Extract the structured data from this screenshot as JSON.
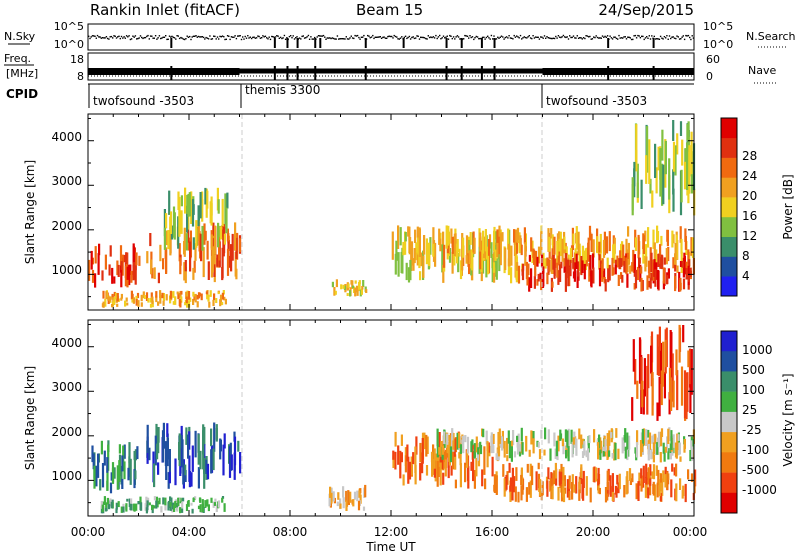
{
  "header": {
    "station": "Rankin Inlet (fitACF)",
    "beam": "Beam 15",
    "date": "24/Sep/2015"
  },
  "summary": {
    "nsky_label": "N.Sky",
    "nsky_ticks": [
      "10^5",
      "10^0"
    ],
    "nsearch_label": "N.Search",
    "nsearch_ticks": [
      "10^5",
      "10^0"
    ],
    "freq_label_1": "Freq.",
    "freq_label_2": "[MHz]",
    "freq_ticks": [
      "18",
      "8"
    ],
    "nave_label": "Nave",
    "nave_ticks": [
      "60",
      "0"
    ],
    "cpid_label": "CPID",
    "cpid_segments": [
      {
        "label": "twofsound -3503",
        "start_hour": 0
      },
      {
        "label": "themis 3300",
        "start_hour": 6
      },
      {
        "label": "twofsound -3503",
        "start_hour": 18
      }
    ]
  },
  "colors": {
    "power": [
      "#2020f0",
      "#1f4fa0",
      "#3a8e6a",
      "#80c040",
      "#f0d020",
      "#f0a020",
      "#f06a10",
      "#e03010",
      "#e00000"
    ],
    "velocity": [
      "#e00000",
      "#f04010",
      "#f07a10",
      "#f0a020",
      "#c8c8c8",
      "#40b040",
      "#3a8e6a",
      "#1f4fa0",
      "#2020d0"
    ]
  },
  "chart_data": [
    {
      "type": "heatmap",
      "panel": "power",
      "xlabel": "",
      "ylabel": "Slant Range [km]",
      "xlim": [
        0,
        24
      ],
      "ylim": [
        200,
        4600
      ],
      "y_ticks": [
        "1000",
        "2000",
        "3000",
        "4000"
      ],
      "colorbar_label": "Power [dB]",
      "colorbar_ticks": [
        "4",
        "8",
        "12",
        "16",
        "20",
        "24",
        "28"
      ],
      "echo_regions": [
        {
          "t0": 0.0,
          "t1": 2.0,
          "r0": 700,
          "r1": 1700,
          "level": 7
        },
        {
          "t0": 2.3,
          "t1": 6.0,
          "r0": 800,
          "r1": 2200,
          "level": 6
        },
        {
          "t0": 0.5,
          "t1": 5.5,
          "r0": 250,
          "r1": 650,
          "level": 5
        },
        {
          "t0": 3.0,
          "t1": 5.5,
          "r0": 1500,
          "r1": 3000,
          "level": 3
        },
        {
          "t0": 9.5,
          "t1": 11.0,
          "r0": 500,
          "r1": 900,
          "level": 4
        },
        {
          "t0": 12.0,
          "t1": 17.0,
          "r0": 800,
          "r1": 2100,
          "level": 4
        },
        {
          "t0": 14.0,
          "t1": 24.0,
          "r0": 1000,
          "r1": 2100,
          "level": 5
        },
        {
          "t0": 17.0,
          "t1": 24.0,
          "r0": 600,
          "r1": 1500,
          "level": 7
        },
        {
          "t0": 21.5,
          "t1": 24.0,
          "r0": 2300,
          "r1": 4500,
          "level": 3
        }
      ]
    },
    {
      "type": "heatmap",
      "panel": "velocity",
      "xlabel": "Time UT",
      "ylabel": "Slant Range [km]",
      "xlim": [
        0,
        24
      ],
      "ylim": [
        200,
        4600
      ],
      "x_ticks": [
        "00:00",
        "04:00",
        "08:00",
        "12:00",
        "16:00",
        "20:00",
        "00:00"
      ],
      "y_ticks": [
        "1000",
        "2000",
        "3000",
        "4000"
      ],
      "colorbar_label": "Velocity [m s⁻¹]",
      "colorbar_ticks": [
        "1000",
        "500",
        "100",
        "25",
        "-25",
        "-100",
        "-500",
        "-1000"
      ],
      "echo_regions": [
        {
          "t0": 0.0,
          "t1": 2.0,
          "r0": 700,
          "r1": 1900,
          "level": 6
        },
        {
          "t0": 2.3,
          "t1": 6.0,
          "r0": 800,
          "r1": 2300,
          "level": 7
        },
        {
          "t0": 0.5,
          "t1": 5.5,
          "r0": 250,
          "r1": 650,
          "level": 5
        },
        {
          "t0": 9.5,
          "t1": 11.0,
          "r0": 300,
          "r1": 900,
          "level": 3
        },
        {
          "t0": 12.0,
          "t1": 16.0,
          "r0": 800,
          "r1": 2100,
          "level": 2
        },
        {
          "t0": 13.5,
          "t1": 24.0,
          "r0": 1400,
          "r1": 2200,
          "level": 4
        },
        {
          "t0": 16.0,
          "t1": 24.0,
          "r0": 500,
          "r1": 1400,
          "level": 2
        },
        {
          "t0": 21.5,
          "t1": 24.0,
          "r0": 2300,
          "r1": 4500,
          "level": 1
        }
      ]
    }
  ]
}
